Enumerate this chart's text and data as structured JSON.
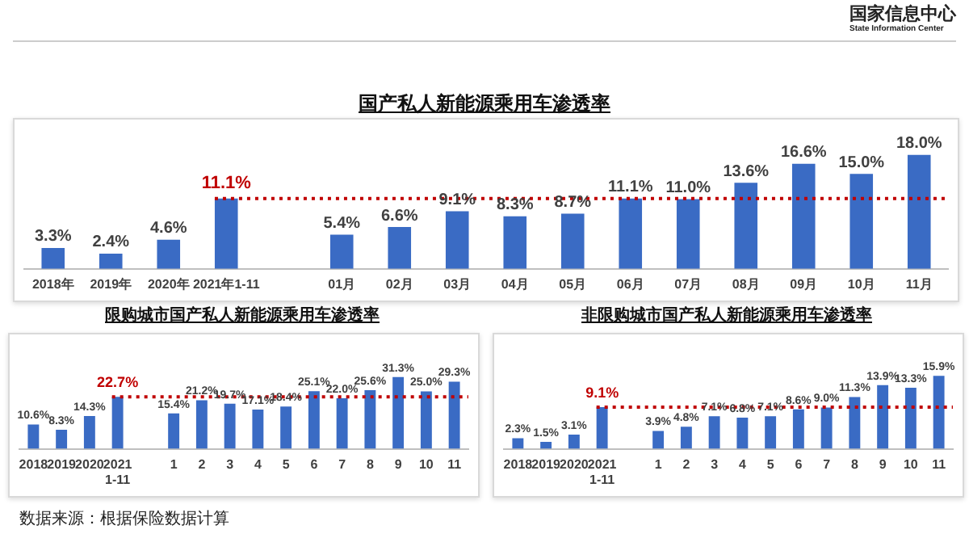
{
  "chart_data": [
    {
      "type": "bar",
      "title": "国产私人新能源乘用车渗透率",
      "categories": [
        "2018年",
        "2019年",
        "2020年",
        "2021年1-11",
        null,
        "01月",
        "02月",
        "03月",
        "04月",
        "05月",
        "06月",
        "07月",
        "08月",
        "09月",
        "10月",
        "11月"
      ],
      "values": [
        3.3,
        2.4,
        4.6,
        11.1,
        null,
        5.4,
        6.6,
        9.1,
        8.3,
        8.7,
        11.1,
        11.0,
        13.6,
        16.6,
        15.0,
        18.0
      ],
      "value_labels": [
        "3.3%",
        "2.4%",
        "4.6%",
        null,
        null,
        "5.4%",
        "6.6%",
        "9.1%",
        "8.3%",
        "8.7%",
        "11.1%",
        "11.0%",
        "13.6%",
        "16.6%",
        "15.0%",
        "18.0%"
      ],
      "color": "#3a6bc4",
      "tick_labels": "x",
      "grid": false,
      "legend": false,
      "ref_lines": [
        {
          "axis": "y",
          "value": 11.1,
          "label": "11.1%",
          "color": "#c00000",
          "line_style": "dotted"
        }
      ],
      "annotations": [
        "国家信息中心",
        "State Information Center"
      ]
    },
    {
      "type": "bar",
      "title": "限购城市国产私人新能源乘用车渗透率",
      "categories": [
        "2018",
        "2019",
        "2020",
        "2021\n1-11",
        null,
        "1",
        "2",
        "3",
        "4",
        "5",
        "6",
        "7",
        "8",
        "9",
        "10",
        "11"
      ],
      "values": [
        10.6,
        8.3,
        14.3,
        22.7,
        null,
        15.4,
        21.2,
        19.7,
        17.1,
        18.4,
        25.1,
        22.0,
        25.6,
        31.3,
        25.0,
        29.3
      ],
      "value_labels": [
        "10.6%",
        "8.3%",
        "14.3%",
        null,
        null,
        "15.4%",
        "21.2%",
        "19.7%",
        "17.1%",
        "18.4%",
        "25.1%",
        "22.0%",
        "25.6%",
        "31.3%",
        "25.0%",
        "29.3%"
      ],
      "color": "#3a6bc4",
      "tick_labels": "x",
      "grid": false,
      "legend": false,
      "ref_lines": [
        {
          "axis": "y",
          "value": 22.7,
          "label": "22.7%",
          "color": "#c00000",
          "line_style": "dotted"
        }
      ],
      "annotations": [
        "数据来源：根据保险数据计算"
      ]
    },
    {
      "type": "bar",
      "title": "非限购城市国产私人新能源乘用车渗透率",
      "categories": [
        "2018",
        "2019",
        "2020",
        "2021\n1-11",
        null,
        "1",
        "2",
        "3",
        "4",
        "5",
        "6",
        "7",
        "8",
        "9",
        "10",
        "11"
      ],
      "values": [
        2.3,
        1.5,
        3.1,
        9.1,
        null,
        3.9,
        4.8,
        7.1,
        6.8,
        7.1,
        8.6,
        9.0,
        11.3,
        13.9,
        13.3,
        15.9
      ],
      "value_labels": [
        "2.3%",
        "1.5%",
        "3.1%",
        null,
        null,
        "3.9%",
        "4.8%",
        "7.1%",
        "6.8%",
        "7.1%",
        "8.6%",
        "9.0%",
        "11.3%",
        "13.9%",
        "13.3%",
        "15.9%"
      ],
      "color": "#3a6bc4",
      "tick_labels": "x",
      "grid": false,
      "legend": false,
      "ref_lines": [
        {
          "axis": "y",
          "value": 9.1,
          "label": "9.1%",
          "color": "#c00000",
          "line_style": "dotted"
        }
      ]
    }
  ]
}
